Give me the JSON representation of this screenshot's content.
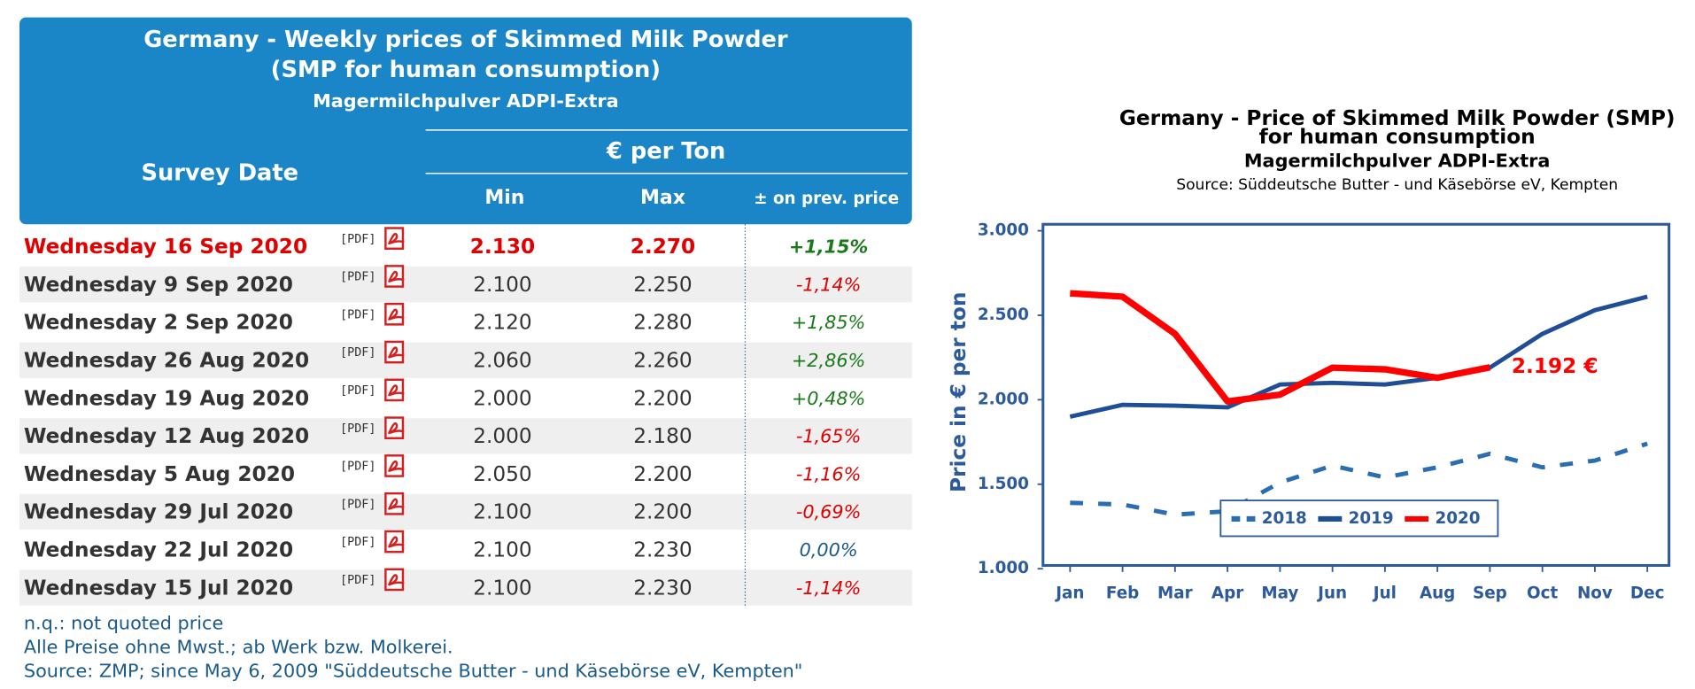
{
  "table": {
    "title": [
      "Germany - Weekly prices of Skimmed Milk Powder",
      "(SMP for human consumption)",
      "Magermilchpulver ADPI-Extra"
    ],
    "header": {
      "date": "Survey Date",
      "unit": "€ per Ton",
      "min": "Min",
      "max": "Max",
      "change": "± on prev. price"
    },
    "pdf_label": "[PDF]",
    "rows": [
      {
        "date": "Wednesday 16 Sep 2020",
        "min": "2.130",
        "max": "2.270",
        "change": "+1,15%",
        "color": "#1a7a1a",
        "highlight": true
      },
      {
        "date": "Wednesday 9 Sep 2020",
        "min": "2.100",
        "max": "2.250",
        "change": "-1,14%",
        "color": "#e00000"
      },
      {
        "date": "Wednesday 2 Sep 2020",
        "min": "2.120",
        "max": "2.280",
        "change": "+1,85%",
        "color": "#1a7a1a"
      },
      {
        "date": "Wednesday 26 Aug 2020",
        "min": "2.060",
        "max": "2.260",
        "change": "+2,86%",
        "color": "#1a7a1a"
      },
      {
        "date": "Wednesday 19 Aug 2020",
        "min": "2.000",
        "max": "2.200",
        "change": "+0,48%",
        "color": "#1a7a1a"
      },
      {
        "date": "Wednesday 12 Aug 2020",
        "min": "2.000",
        "max": "2.180",
        "change": "-1,65%",
        "color": "#e00000"
      },
      {
        "date": "Wednesday 5 Aug 2020",
        "min": "2.050",
        "max": "2.200",
        "change": "-1,16%",
        "color": "#e00000"
      },
      {
        "date": "Wednesday 29 Jul 2020",
        "min": "2.100",
        "max": "2.200",
        "change": "-0,69%",
        "color": "#e00000"
      },
      {
        "date": "Wednesday 22 Jul 2020",
        "min": "2.100",
        "max": "2.230",
        "change": "0,00%",
        "color": "#1a5a8a"
      },
      {
        "date": "Wednesday 15 Jul 2020",
        "min": "2.100",
        "max": "2.230",
        "change": "-1,14%",
        "color": "#e00000"
      }
    ],
    "notes": [
      "n.q.: not quoted price",
      "Alle Preise ohne Mwst.; ab Werk bzw. Molkerei.",
      "Source: ZMP; since May 6, 2009 \"Süddeutsche Butter - und Käsebörse eV, Kempten\""
    ]
  },
  "chart_data": {
    "type": "line",
    "title": [
      "Germany - Price of Skimmed Milk Powder (SMP)",
      "for human consumption",
      "Magermilchpulver ADPI-Extra"
    ],
    "subtitle": "Source: Süddeutsche Butter - und Käsebörse eV, Kempten",
    "ylabel": "Price in € per ton",
    "categories": [
      "Jan",
      "Feb",
      "Mar",
      "Apr",
      "May",
      "Jun",
      "Jul",
      "Aug",
      "Sep",
      "Oct",
      "Nov",
      "Dec"
    ],
    "series": [
      {
        "name": "2018",
        "color": "#2a6db0",
        "dashed": true,
        "values": [
          1390,
          1380,
          1320,
          1340,
          1510,
          1610,
          1540,
          1600,
          1680,
          1600,
          1640,
          1740
        ]
      },
      {
        "name": "2019",
        "color": "#1f4e96",
        "dashed": false,
        "values": [
          1900,
          1970,
          1965,
          1955,
          2090,
          2100,
          2090,
          2130,
          2190,
          2390,
          2530,
          2610
        ]
      },
      {
        "name": "2020",
        "color": "#ff0000",
        "dashed": false,
        "values": [
          2630,
          2610,
          2390,
          1990,
          2030,
          2190,
          2180,
          2130,
          2192,
          null,
          null,
          null
        ]
      }
    ],
    "annotation": "2.192 €",
    "ylim": [
      1000,
      3000
    ],
    "yticks": [
      {
        "value": 1000,
        "label": "1.000"
      },
      {
        "value": 1500,
        "label": "1.500"
      },
      {
        "value": 2000,
        "label": "2.000"
      },
      {
        "value": 2500,
        "label": "2.500"
      },
      {
        "value": 3000,
        "label": "3.000"
      }
    ],
    "grid": false,
    "legend": "bottom"
  }
}
